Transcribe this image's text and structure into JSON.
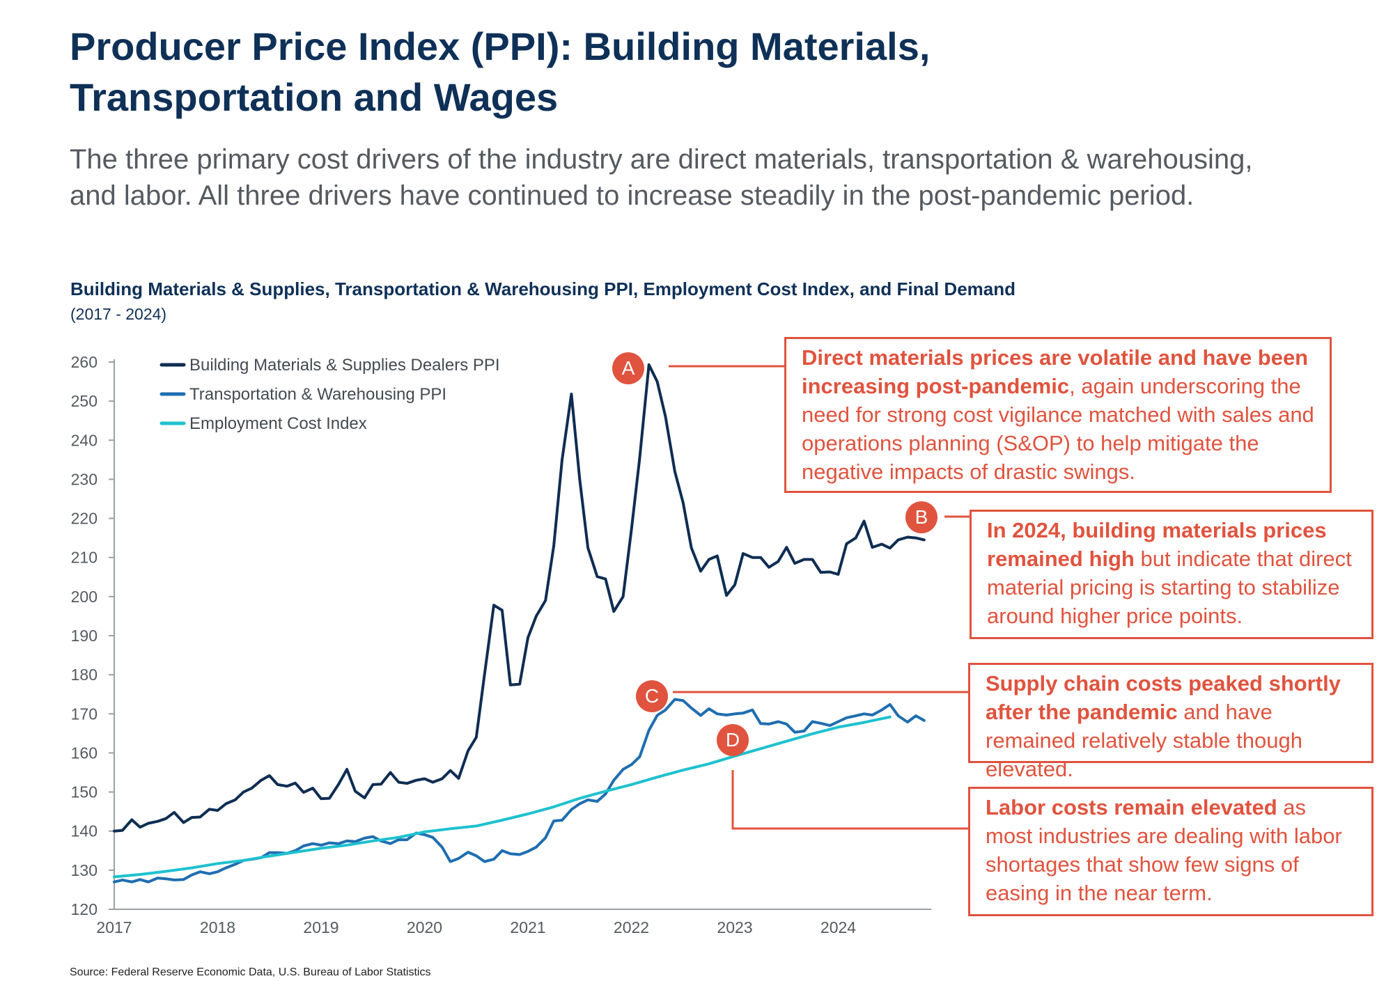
{
  "title": {
    "line1": "Producer Price Index (PPI): Building Materials,",
    "line2": "Transportation and Wages"
  },
  "subtitle": {
    "line1": "The three primary cost drivers of the industry are direct materials, transportation & warehousing,",
    "line2": "and labor. All three drivers have continued to increase steadily in the post-pandemic period."
  },
  "chart_title": "Building Materials & Supplies, Transportation & Warehousing PPI, Employment Cost Index, and Final Demand",
  "chart_subtitle": "(2017 - 2024)",
  "source": "Source: Federal Reserve Economic Data, U.S. Bureau of Labor Statistics",
  "colors": {
    "building": "#0f2d52",
    "transport": "#1f6eb0",
    "employment": "#1fc1cf",
    "accent": "#e0533e",
    "axis": "#9aa0a6",
    "tick": "#555a60"
  },
  "callouts": {
    "a": {
      "marker": "A",
      "bold": "Direct materials prices are volatile and have been increasing post-pandemic",
      "text": ", again underscoring the need for strong cost vigilance matched with sales and operations planning (S&OP) to help mitigate the negative impacts of drastic swings."
    },
    "b": {
      "marker": "B",
      "bold": "In 2024, building materials prices remained high",
      "text": " but indicate that direct material pricing is starting to stabilize around higher price points."
    },
    "c": {
      "marker": "C",
      "bold": "Supply chain costs peaked shortly after the pandemic",
      "text": " and have remained relatively stable though elevated."
    },
    "d": {
      "marker": "D",
      "bold": "Labor costs remain elevated",
      "text": " as most industries are dealing with labor shortages that show few signs of easing in the near term."
    }
  },
  "chart_data": {
    "type": "line",
    "title": "Building Materials & Supplies, Transportation & Warehousing PPI, Employment Cost Index, and Final Demand",
    "subtitle": "(2017 - 2024)",
    "xlabel": "",
    "ylabel": "",
    "xlim": [
      2017,
      2024.9
    ],
    "ylim": [
      120,
      260
    ],
    "yticks": [
      120,
      130,
      140,
      150,
      160,
      170,
      180,
      190,
      200,
      210,
      220,
      230,
      240,
      250,
      260
    ],
    "xticks": [
      2017,
      2018,
      2019,
      2020,
      2021,
      2022,
      2023,
      2024
    ],
    "xtick_labels": [
      "2017",
      "2018",
      "2019",
      "2020",
      "2021",
      "2022",
      "2023",
      "2024"
    ],
    "legend_position": "top-left",
    "series": [
      {
        "name": "Building Materials & Supplies Dealers PPI",
        "color": "#0f2d52",
        "x": [
          2017.0,
          2017.08,
          2017.17,
          2017.25,
          2017.33,
          2017.42,
          2017.5,
          2017.58,
          2017.67,
          2017.75,
          2017.83,
          2017.92,
          2018.0,
          2018.08,
          2018.17,
          2018.25,
          2018.33,
          2018.42,
          2018.5,
          2018.58,
          2018.67,
          2018.75,
          2018.83,
          2018.92,
          2019.0,
          2019.08,
          2019.17,
          2019.25,
          2019.33,
          2019.42,
          2019.5,
          2019.58,
          2019.67,
          2019.75,
          2019.83,
          2019.92,
          2020.0,
          2020.08,
          2020.17,
          2020.25,
          2020.33,
          2020.42,
          2020.5,
          2020.58,
          2020.67,
          2020.75,
          2020.83,
          2020.92,
          2021.0,
          2021.08,
          2021.17,
          2021.25,
          2021.33,
          2021.42,
          2021.5,
          2021.58,
          2021.67,
          2021.75,
          2021.83,
          2021.92,
          2022.0,
          2022.08,
          2022.17,
          2022.25,
          2022.33,
          2022.42,
          2022.5,
          2022.58,
          2022.67,
          2022.75,
          2022.83,
          2022.92,
          2023.0,
          2023.08,
          2023.17,
          2023.25,
          2023.33,
          2023.42,
          2023.5,
          2023.58,
          2023.67,
          2023.75,
          2023.83,
          2023.92,
          2024.0,
          2024.08,
          2024.17,
          2024.25,
          2024.33,
          2024.42,
          2024.5,
          2024.58,
          2024.67,
          2024.75,
          2024.83
        ],
        "values": [
          140,
          140.2,
          142.9,
          141,
          142,
          142.5,
          143.2,
          144.8,
          142.2,
          143.5,
          143.6,
          145.6,
          145.3,
          147,
          148,
          150,
          151,
          153,
          154.2,
          151.9,
          151.5,
          152.3,
          149.9,
          151,
          148.3,
          148.4,
          152,
          155.8,
          150.2,
          148.5,
          151.9,
          152,
          155,
          152.5,
          152.2,
          153,
          153.4,
          152.5,
          153.4,
          155.5,
          153.5,
          160.5,
          164,
          180,
          197.8,
          196.5,
          177.4,
          177.6,
          189.5,
          195,
          199,
          213,
          235,
          251.8,
          230,
          212.5,
          205.1,
          204.5,
          196.2,
          200,
          217,
          235.4,
          259.3,
          255,
          246,
          232,
          224,
          212.5,
          206.5,
          209.5,
          210.4,
          200.3,
          203,
          211,
          210,
          210,
          207.5,
          209,
          212.6,
          208.5,
          209.5,
          209.5,
          206.2,
          206.3,
          205.7,
          213.5,
          215,
          219.3,
          212.6,
          213.4,
          212.4,
          214.5,
          215.2,
          215,
          214.5
        ]
      },
      {
        "name": "Transportation & Warehousing PPI",
        "color": "#1f6eb0",
        "x": [
          2017.0,
          2017.08,
          2017.17,
          2017.25,
          2017.33,
          2017.42,
          2017.5,
          2017.58,
          2017.67,
          2017.75,
          2017.83,
          2017.92,
          2018.0,
          2018.08,
          2018.17,
          2018.25,
          2018.33,
          2018.42,
          2018.5,
          2018.58,
          2018.67,
          2018.75,
          2018.83,
          2018.92,
          2019.0,
          2019.08,
          2019.17,
          2019.25,
          2019.33,
          2019.42,
          2019.5,
          2019.58,
          2019.67,
          2019.75,
          2019.83,
          2019.92,
          2020.0,
          2020.08,
          2020.17,
          2020.25,
          2020.33,
          2020.42,
          2020.5,
          2020.58,
          2020.67,
          2020.75,
          2020.83,
          2020.92,
          2021.0,
          2021.08,
          2021.17,
          2021.25,
          2021.33,
          2021.42,
          2021.5,
          2021.58,
          2021.67,
          2021.75,
          2021.83,
          2021.92,
          2022.0,
          2022.08,
          2022.17,
          2022.25,
          2022.33,
          2022.42,
          2022.5,
          2022.58,
          2022.67,
          2022.75,
          2022.83,
          2022.92,
          2023.0,
          2023.08,
          2023.17,
          2023.25,
          2023.33,
          2023.42,
          2023.5,
          2023.58,
          2023.67,
          2023.75,
          2023.83,
          2023.92,
          2024.0,
          2024.08,
          2024.17,
          2024.25,
          2024.33,
          2024.42,
          2024.5,
          2024.58,
          2024.67,
          2024.75,
          2024.83
        ],
        "values": [
          127,
          127.5,
          127,
          127.6,
          127,
          128,
          127.8,
          127.5,
          127.6,
          128.8,
          129.6,
          129.1,
          129.6,
          130.6,
          131.5,
          132.5,
          132.8,
          133.2,
          134.5,
          134.5,
          134.3,
          135,
          136.2,
          136.8,
          136.4,
          137,
          136.8,
          137.5,
          137.3,
          138.2,
          138.6,
          137.5,
          136.8,
          137.8,
          137.8,
          139.5,
          139.1,
          138.4,
          135.9,
          132.2,
          133,
          134.6,
          133.7,
          132.2,
          132.8,
          135,
          134.2,
          134,
          134.8,
          135.9,
          138.3,
          142.6,
          142.8,
          145.5,
          147,
          148,
          147.6,
          149.5,
          153,
          155.8,
          157,
          159,
          165.8,
          169.6,
          171,
          173.7,
          173.4,
          171.5,
          169.6,
          171.3,
          170,
          169.7,
          170,
          170.2,
          171,
          167.5,
          167.4,
          168,
          167.4,
          165.3,
          165.6,
          168,
          167.6,
          167,
          168,
          169,
          169.5,
          170,
          169.7,
          171,
          172.4,
          169.5,
          167.9,
          169.5,
          168.3
        ]
      },
      {
        "name": "Employment Cost Index",
        "color": "#1fc1cf",
        "x": [
          2017.0,
          2017.25,
          2017.5,
          2017.75,
          2018.0,
          2018.25,
          2018.5,
          2018.75,
          2019.0,
          2019.25,
          2019.5,
          2019.75,
          2020.0,
          2020.25,
          2020.5,
          2020.75,
          2021.0,
          2021.25,
          2021.5,
          2021.75,
          2022.0,
          2022.25,
          2022.5,
          2022.75,
          2023.0,
          2023.25,
          2023.5,
          2023.75,
          2024.0,
          2024.25,
          2024.5
        ],
        "values": [
          128.3,
          128.9,
          129.7,
          130.6,
          131.7,
          132.5,
          133.6,
          134.6,
          135.6,
          136.4,
          137.5,
          138.4,
          139.8,
          140.6,
          141.3,
          142.8,
          144.4,
          146.2,
          148.4,
          150.2,
          151.9,
          153.8,
          155.6,
          157.2,
          159.2,
          161.1,
          163,
          164.9,
          166.6,
          167.8,
          169.2
        ]
      }
    ]
  }
}
